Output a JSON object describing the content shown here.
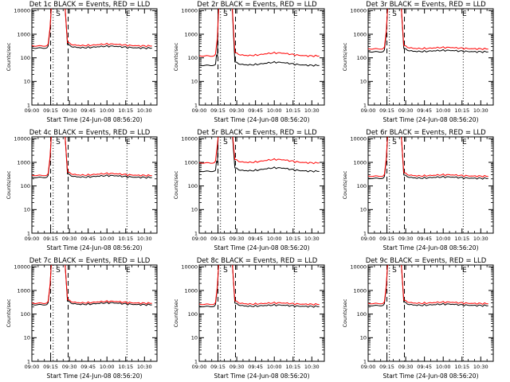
{
  "chart_data": [
    {
      "type": "line",
      "title": "Det 1c BLACK = Events, RED = LLD",
      "xlabel": "Start Time (24-Jun-08 08:56:20)",
      "ylabel": "Counts/sec",
      "yscale": "log",
      "ylim": [
        1,
        12000
      ],
      "x_ticks": [
        "09:00",
        "09:15",
        "09:30",
        "09:45",
        "10:00",
        "10:15",
        "10:30"
      ],
      "y_ticks": [
        "1",
        "10",
        "100",
        "1000",
        "10000"
      ],
      "level": {
        "events": 260,
        "lld": 320
      },
      "mid_ratio": 1.2,
      "events_flare_peak": null,
      "markers": [
        {
          "label": "S",
          "x": "09:21"
        },
        {
          "label": "E",
          "x": "10:17"
        }
      ],
      "dashed_lines": [
        "09:15",
        "09:29"
      ],
      "dotted_lines": [
        "09:17",
        "10:16"
      ]
    },
    {
      "type": "line",
      "title": "Det 2r BLACK = Events, RED = LLD",
      "xlabel": "Start Time (24-Jun-08 08:56:20)",
      "ylabel": "Counts/sec",
      "yscale": "log",
      "ylim": [
        1,
        12000
      ],
      "x_ticks": [
        "09:00",
        "09:15",
        "09:30",
        "09:45",
        "10:00",
        "10:15",
        "10:30"
      ],
      "y_ticks": [
        "1",
        "10",
        "100",
        "1000",
        "10000"
      ],
      "level": {
        "events": 48,
        "lld": 120
      },
      "mid_ratio": 1.35,
      "events_flare_peak": 130,
      "markers": [
        {
          "label": "S",
          "x": "09:21"
        },
        {
          "label": "E",
          "x": "10:17"
        }
      ],
      "dashed_lines": [
        "09:15",
        "09:29"
      ],
      "dotted_lines": [
        "09:17",
        "10:16"
      ]
    },
    {
      "type": "line",
      "title": "Det 3r BLACK = Events, RED = LLD",
      "xlabel": "Start Time (24-Jun-08 08:56:20)",
      "ylabel": "Counts/sec",
      "yscale": "log",
      "ylim": [
        1,
        12000
      ],
      "x_ticks": [
        "09:00",
        "09:15",
        "09:30",
        "09:45",
        "10:00",
        "10:15",
        "10:30"
      ],
      "y_ticks": [
        "1",
        "10",
        "100",
        "1000",
        "10000"
      ],
      "level": {
        "events": 180,
        "lld": 240
      },
      "mid_ratio": 1.15,
      "events_flare_peak": null,
      "markers": [
        {
          "label": "S",
          "x": "09:21"
        },
        {
          "label": "E",
          "x": "10:17"
        }
      ],
      "dashed_lines": [
        "09:15",
        "09:29"
      ],
      "dotted_lines": [
        "09:17",
        "10:16"
      ]
    },
    {
      "type": "line",
      "title": "Det 4c BLACK = Events, RED = LLD",
      "xlabel": "Start Time (24-Jun-08 08:56:20)",
      "ylabel": "Counts/sec",
      "yscale": "log",
      "ylim": [
        1,
        12000
      ],
      "x_ticks": [
        "09:00",
        "09:15",
        "09:30",
        "09:45",
        "10:00",
        "10:15",
        "10:30"
      ],
      "y_ticks": [
        "1",
        "10",
        "100",
        "1000",
        "10000"
      ],
      "level": {
        "events": 230,
        "lld": 280
      },
      "mid_ratio": 1.2,
      "events_flare_peak": null,
      "markers": [
        {
          "label": "S",
          "x": "09:21"
        },
        {
          "label": "E",
          "x": "10:17"
        }
      ],
      "dashed_lines": [
        "09:15",
        "09:29"
      ],
      "dotted_lines": [
        "09:17",
        "10:16"
      ]
    },
    {
      "type": "line",
      "title": "Det 5r BLACK = Events, RED = LLD",
      "xlabel": "Start Time (24-Jun-08 08:56:20)",
      "ylabel": "Counts/sec",
      "yscale": "log",
      "ylim": [
        1,
        12000
      ],
      "x_ticks": [
        "09:00",
        "09:15",
        "09:30",
        "09:45",
        "10:00",
        "10:15",
        "10:30"
      ],
      "y_ticks": [
        "1",
        "10",
        "100",
        "1000",
        "10000"
      ],
      "level": {
        "events": 420,
        "lld": 950
      },
      "mid_ratio": 1.4,
      "events_flare_peak": 1100,
      "markers": [
        {
          "label": "S",
          "x": "09:21"
        },
        {
          "label": "E",
          "x": "10:17"
        }
      ],
      "dashed_lines": [
        "09:15",
        "09:29"
      ],
      "dotted_lines": [
        "09:17",
        "10:16"
      ]
    },
    {
      "type": "line",
      "title": "Det 6r BLACK = Events, RED = LLD",
      "xlabel": "Start Time (24-Jun-08 08:56:20)",
      "ylabel": "Counts/sec",
      "yscale": "log",
      "ylim": [
        1,
        12000
      ],
      "x_ticks": [
        "09:00",
        "09:15",
        "09:30",
        "09:45",
        "10:00",
        "10:15",
        "10:30"
      ],
      "y_ticks": [
        "1",
        "10",
        "100",
        "1000",
        "10000"
      ],
      "level": {
        "events": 210,
        "lld": 260
      },
      "mid_ratio": 1.15,
      "events_flare_peak": null,
      "markers": [
        {
          "label": "S",
          "x": "09:21"
        },
        {
          "label": "E",
          "x": "10:17"
        }
      ],
      "dashed_lines": [
        "09:15",
        "09:29"
      ],
      "dotted_lines": [
        "09:17",
        "10:16"
      ]
    },
    {
      "type": "line",
      "title": "Det 7c BLACK = Events, RED = LLD",
      "xlabel": "Start Time (24-Jun-08 08:56:20)",
      "ylabel": "Counts/sec",
      "yscale": "log",
      "ylim": [
        1,
        12000
      ],
      "x_ticks": [
        "09:00",
        "09:15",
        "09:30",
        "09:45",
        "10:00",
        "10:15",
        "10:30"
      ],
      "y_ticks": [
        "1",
        "10",
        "100",
        "1000",
        "10000"
      ],
      "level": {
        "events": 250,
        "lld": 290
      },
      "mid_ratio": 1.2,
      "events_flare_peak": null,
      "markers": [
        {
          "label": "S",
          "x": "09:21"
        },
        {
          "label": "E",
          "x": "10:17"
        }
      ],
      "dashed_lines": [
        "09:15",
        "09:29"
      ],
      "dotted_lines": [
        "09:17",
        "10:16"
      ]
    },
    {
      "type": "line",
      "title": "Det 8c BLACK = Events, RED = LLD",
      "xlabel": "Start Time (24-Jun-08 08:56:20)",
      "ylabel": "Counts/sec",
      "yscale": "log",
      "ylim": [
        1,
        12000
      ],
      "x_ticks": [
        "09:00",
        "09:15",
        "09:30",
        "09:45",
        "10:00",
        "10:15",
        "10:30"
      ],
      "y_ticks": [
        "1",
        "10",
        "100",
        "1000",
        "10000"
      ],
      "level": {
        "events": 210,
        "lld": 260
      },
      "mid_ratio": 1.15,
      "events_flare_peak": null,
      "markers": [
        {
          "label": "S",
          "x": "09:21"
        },
        {
          "label": "E",
          "x": "10:17"
        }
      ],
      "dashed_lines": [
        "09:15",
        "09:29"
      ],
      "dotted_lines": [
        "09:17",
        "10:16"
      ]
    },
    {
      "type": "line",
      "title": "Det 9c BLACK = Events, RED = LLD",
      "xlabel": "Start Time (24-Jun-08 08:56:20)",
      "ylabel": "Counts/sec",
      "yscale": "log",
      "ylim": [
        1,
        12000
      ],
      "x_ticks": [
        "09:00",
        "09:15",
        "09:30",
        "09:45",
        "10:00",
        "10:15",
        "10:30"
      ],
      "y_ticks": [
        "1",
        "10",
        "100",
        "1000",
        "10000"
      ],
      "level": {
        "events": 230,
        "lld": 280
      },
      "mid_ratio": 1.15,
      "events_flare_peak": null,
      "markers": [
        {
          "label": "S",
          "x": "09:21"
        },
        {
          "label": "E",
          "x": "10:17"
        }
      ],
      "dashed_lines": [
        "09:15",
        "09:29"
      ],
      "dotted_lines": [
        "09:17",
        "10:16"
      ]
    }
  ],
  "colors": {
    "events": "#000000",
    "lld": "#ff0000",
    "axes": "#000000",
    "background": "#ffffff"
  }
}
